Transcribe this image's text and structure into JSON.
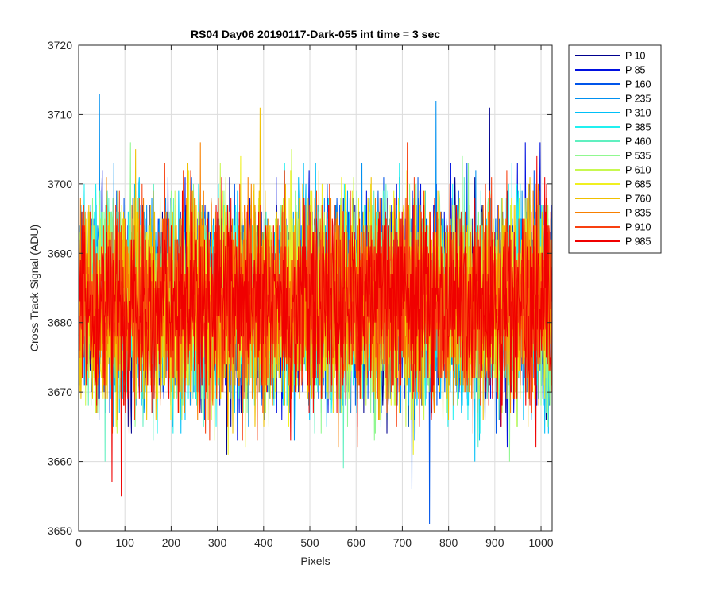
{
  "chart_data": {
    "type": "line",
    "title": "RS04 Day06 20190117-Dark-055 int time = 3 sec",
    "xlabel": "Pixels",
    "ylabel": "Cross Track Signal (ADU)",
    "xlim": [
      0,
      1024
    ],
    "ylim": [
      3650,
      3720
    ],
    "xticks": [
      0,
      100,
      200,
      300,
      400,
      500,
      600,
      700,
      800,
      900,
      1000
    ],
    "yticks": [
      3650,
      3660,
      3670,
      3680,
      3690,
      3700,
      3710,
      3720
    ],
    "grid": true,
    "legend_position": "outside-top-right",
    "mean": 3683,
    "noise_std": 7,
    "points_per_series": 1024,
    "series": [
      {
        "name": "P 10",
        "color": "#00008F"
      },
      {
        "name": "P 85",
        "color": "#0010E0"
      },
      {
        "name": "P 160",
        "color": "#0055EA"
      },
      {
        "name": "P 235",
        "color": "#0090F0"
      },
      {
        "name": "P 310",
        "color": "#00C0F8"
      },
      {
        "name": "P 385",
        "color": "#20F0F0"
      },
      {
        "name": "P 460",
        "color": "#60F0C0"
      },
      {
        "name": "P 535",
        "color": "#90F890"
      },
      {
        "name": "P 610",
        "color": "#C8F850"
      },
      {
        "name": "P 685",
        "color": "#F0F020"
      },
      {
        "name": "P 760",
        "color": "#F0C000"
      },
      {
        "name": "P 835",
        "color": "#F88000"
      },
      {
        "name": "P 910",
        "color": "#F84010"
      },
      {
        "name": "P 985",
        "color": "#F00000"
      }
    ],
    "notable_points": [
      {
        "series": "P 235",
        "x": 45,
        "y": 3713
      },
      {
        "series": "P 760",
        "x": 392,
        "y": 3711
      },
      {
        "series": "P 235",
        "x": 772,
        "y": 3712
      },
      {
        "series": "P 10",
        "x": 888,
        "y": 3711
      },
      {
        "series": "P 160",
        "x": 758,
        "y": 3651
      },
      {
        "series": "P 985",
        "x": 92,
        "y": 3655
      },
      {
        "series": "P 985",
        "x": 72,
        "y": 3657
      },
      {
        "series": "P 160",
        "x": 720,
        "y": 3656
      }
    ]
  }
}
